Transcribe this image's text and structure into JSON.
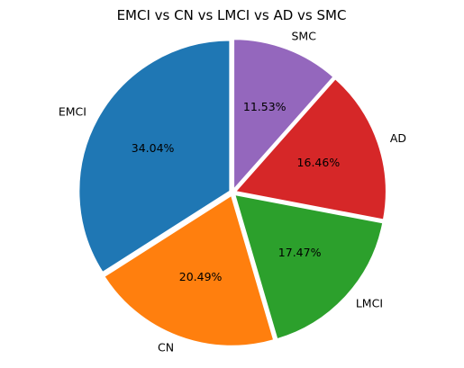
{
  "chart_data": {
    "type": "pie",
    "title": "EMCI vs CN vs LMCI vs AD vs SMC",
    "slices": [
      {
        "label": "EMCI",
        "value": 34.04,
        "pct_label": "34.04%",
        "color": "#1f77b4"
      },
      {
        "label": "CN",
        "value": 20.49,
        "pct_label": "20.49%",
        "color": "#ff7f0e"
      },
      {
        "label": "LMCI",
        "value": 17.47,
        "pct_label": "17.47%",
        "color": "#2ca02c"
      },
      {
        "label": "AD",
        "value": 16.46,
        "pct_label": "16.46%",
        "color": "#d62728"
      },
      {
        "label": "SMC",
        "value": 11.53,
        "pct_label": "11.53%",
        "color": "#9467bd"
      }
    ],
    "start_angle_deg": 90,
    "direction": "counterclockwise",
    "exploded": true,
    "legend": "none"
  }
}
